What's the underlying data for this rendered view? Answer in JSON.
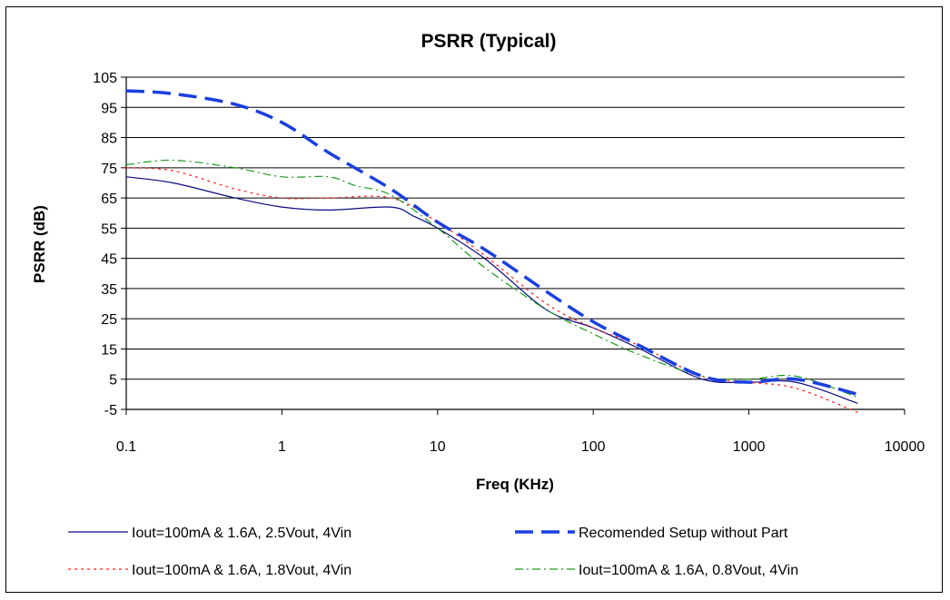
{
  "chart_data": {
    "type": "line",
    "title": "PSRR (Typical)",
    "xlabel": "Freq (KHz)",
    "ylabel": "PSRR (dB)",
    "x_scale": "log",
    "xlim": [
      0.1,
      10000
    ],
    "ylim": [
      -5,
      105
    ],
    "xticks": [
      "0.1",
      "1",
      "10",
      "100",
      "1000",
      "10000"
    ],
    "yticks": [
      "105",
      "95",
      "85",
      "75",
      "65",
      "55",
      "45",
      "35",
      "25",
      "15",
      "5",
      "-5"
    ],
    "grid": "horizontal",
    "legend_position": "bottom",
    "series": [
      {
        "name": "Iout=100mA & 1.6A, 2.5Vout, 4Vin",
        "color": "#0a0a7e",
        "line_style": "solid",
        "x": [
          0.1,
          0.2,
          0.5,
          1,
          2,
          5,
          7,
          10,
          20,
          50,
          100,
          200,
          500,
          1000,
          2000,
          5000
        ],
        "y": [
          72,
          70,
          65,
          62,
          61,
          62,
          59,
          55,
          45,
          28,
          22,
          15,
          5,
          4,
          4,
          -3
        ]
      },
      {
        "name": "Recomended Setup without Part",
        "color": "#1a3fe0",
        "line_style": "dashed",
        "x": [
          0.1,
          0.2,
          0.5,
          1,
          2,
          5,
          10,
          20,
          50,
          100,
          200,
          500,
          1000,
          2000,
          5000
        ],
        "y": [
          100.5,
          99.5,
          96,
          90,
          80,
          68,
          57,
          48,
          34,
          24,
          16,
          6,
          4,
          5,
          0
        ]
      },
      {
        "name": "Iout=100mA & 1.6A, 1.8Vout, 4Vin",
        "color": "#ff2020",
        "line_style": "dotted",
        "x": [
          0.1,
          0.2,
          0.5,
          1,
          2,
          5,
          10,
          20,
          50,
          100,
          200,
          500,
          1000,
          2000,
          5000
        ],
        "y": [
          75,
          74,
          68,
          65,
          65,
          65,
          57,
          46,
          30,
          22,
          16,
          6,
          4,
          2,
          -6
        ]
      },
      {
        "name": "Iout=100mA & 1.6A, 0.8Vout, 4Vin",
        "color": "#1a9a1a",
        "line_style": "dash-dot",
        "x": [
          0.1,
          0.2,
          0.5,
          1,
          2,
          3,
          5,
          10,
          20,
          50,
          100,
          200,
          500,
          1000,
          2000,
          5000
        ],
        "y": [
          76,
          77.5,
          75,
          72,
          72,
          69,
          66,
          55,
          42,
          28,
          20,
          13,
          6,
          5,
          6,
          -1
        ]
      }
    ]
  }
}
